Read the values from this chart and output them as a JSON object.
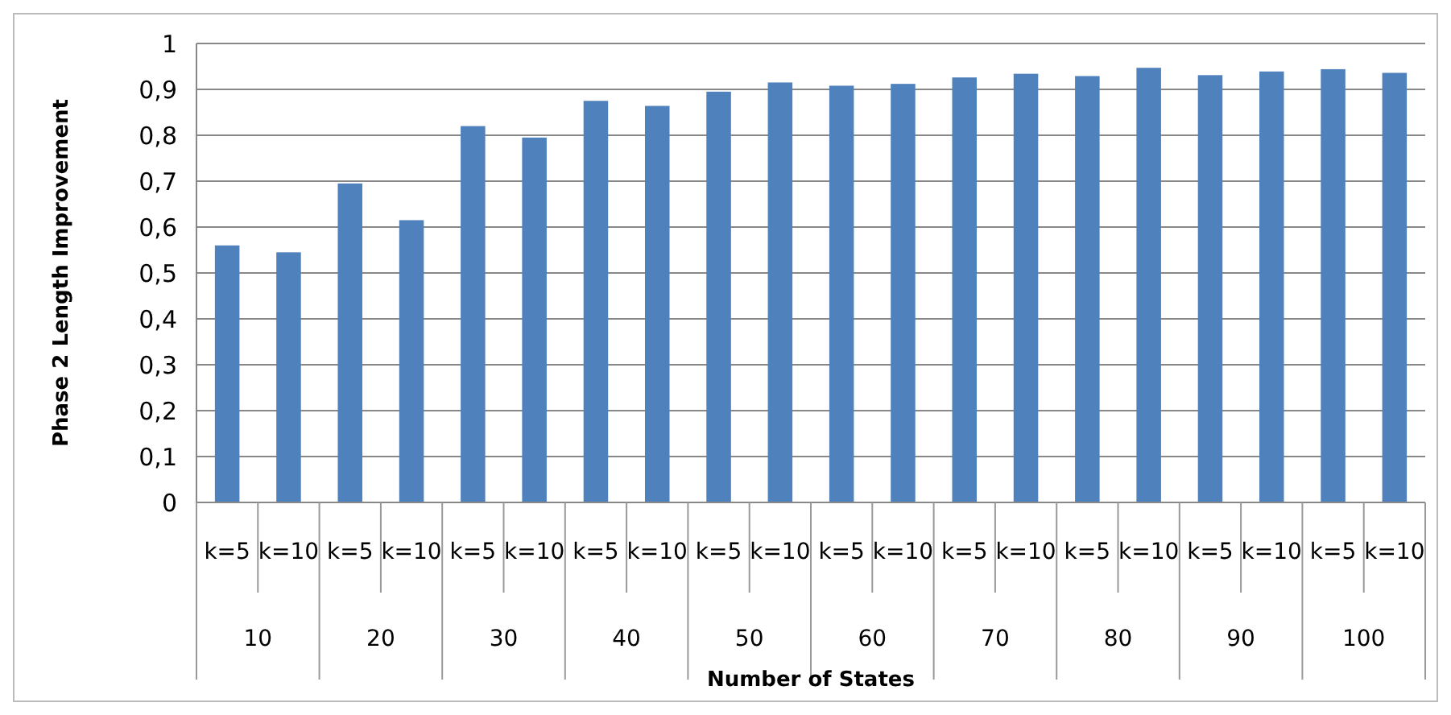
{
  "chart_data": {
    "type": "bar",
    "xlabel": "Number of States",
    "ylabel": "Phase 2 Length Improvement",
    "categories": [
      "k=5",
      "k=10",
      "k=5",
      "k=10",
      "k=5",
      "k=10",
      "k=5",
      "k=10",
      "k=5",
      "k=10",
      "k=5",
      "k=10",
      "k=5",
      "k=10",
      "k=5",
      "k=10",
      "k=5",
      "k=10",
      "k=5",
      "k=10"
    ],
    "values": [
      0.56,
      0.545,
      0.695,
      0.615,
      0.82,
      0.795,
      0.875,
      0.864,
      0.895,
      0.915,
      0.908,
      0.912,
      0.926,
      0.934,
      0.929,
      0.947,
      0.931,
      0.939,
      0.944,
      0.936
    ],
    "color": "#4f81bd",
    "annotations": [
      "10",
      "20",
      "30",
      "40",
      "50",
      "60",
      "70",
      "80",
      "90",
      "100"
    ],
    "ylim": [
      0,
      1
    ],
    "yticks": [
      0,
      {
        "value": 0.1,
        "label": "0,1"
      },
      {
        "value": 0.2,
        "label": "0,2"
      },
      {
        "value": 0.3,
        "label": "0,3"
      },
      {
        "value": 0.4,
        "label": "0,4"
      },
      {
        "value": 0.5,
        "label": "0,5"
      },
      {
        "value": 0.6,
        "label": "0,6"
      },
      {
        "value": 0.7,
        "label": "0,7"
      },
      {
        "value": 0.8,
        "label": "0,8"
      },
      {
        "value": 0.9,
        "label": "0,9"
      },
      1
    ],
    "grid": "y"
  }
}
